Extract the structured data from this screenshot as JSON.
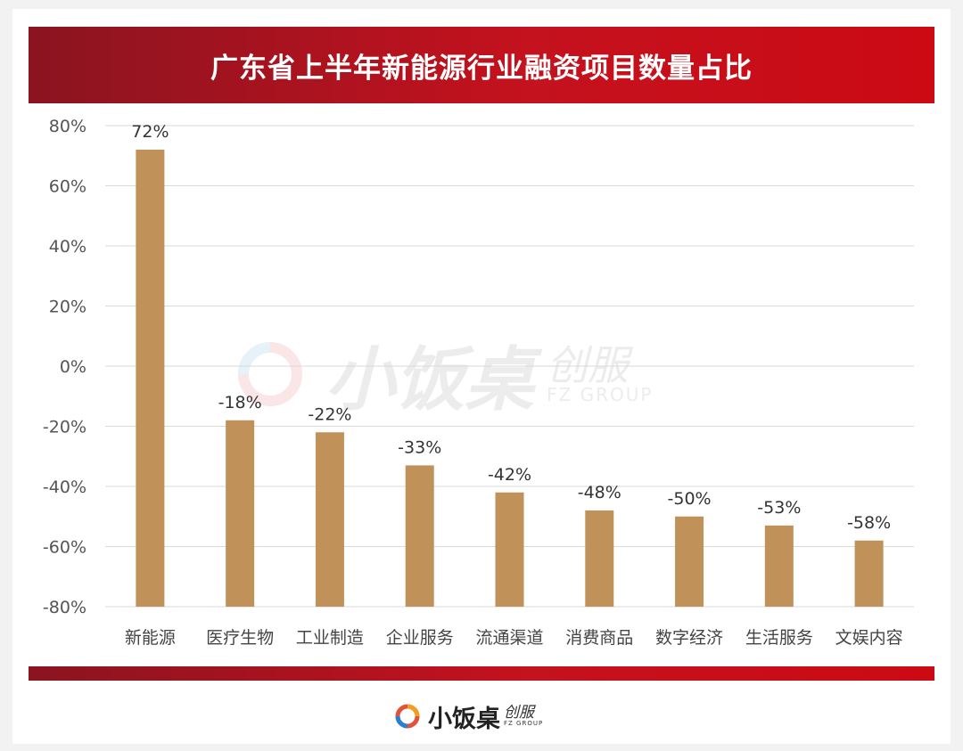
{
  "title": "广东省上半年新能源行业融资项目数量占比",
  "watermark": {
    "brand": "小饭桌",
    "suffix": "创服",
    "group": "FZ GROUP"
  },
  "logo": {
    "brand": "小饭桌",
    "suffix": "创服",
    "group": "FZ GROUP"
  },
  "colors": {
    "bar": "#c0925a",
    "title_bar": "#c4121e",
    "grid": "#d9d9d9"
  },
  "chart_data": {
    "type": "bar",
    "categories": [
      "新能源",
      "医疗生物",
      "工业制造",
      "企业服务",
      "流通渠道",
      "消费商品",
      "数字经济",
      "生活服务",
      "文娱内容"
    ],
    "values": [
      72,
      -18,
      -22,
      -33,
      -42,
      -48,
      -50,
      -53,
      -58
    ],
    "value_labels": [
      "72%",
      "-18%",
      "-22%",
      "-33%",
      "-42%",
      "-48%",
      "-50%",
      "-53%",
      "-58%"
    ],
    "ylim": [
      -80,
      80
    ],
    "yticks": [
      80,
      60,
      40,
      20,
      0,
      -20,
      -40,
      -60,
      -80
    ],
    "ytick_labels": [
      "80%",
      "60%",
      "40%",
      "20%",
      "0%",
      "-20%",
      "-40%",
      "-60%",
      "-80%"
    ],
    "grid": true,
    "bar_anchor": "bottom"
  }
}
